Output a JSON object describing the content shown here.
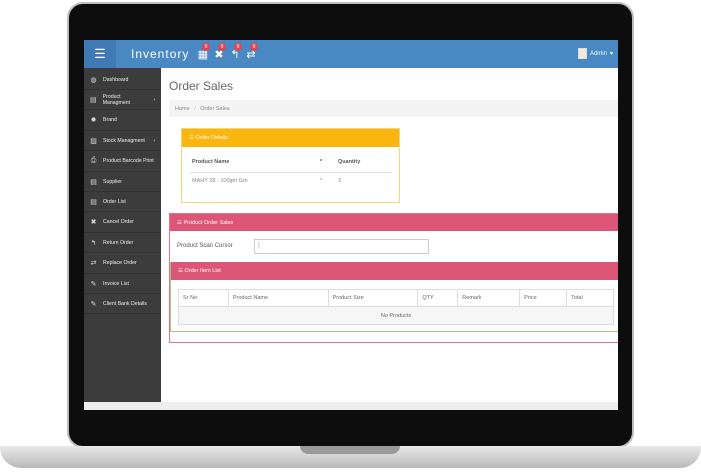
{
  "header": {
    "brand": "Inventory",
    "user": "Admin",
    "notifications": [
      {
        "icon": "calendar-icon",
        "glyph": "▦",
        "count": "0"
      },
      {
        "icon": "close-icon",
        "glyph": "✖",
        "count": "0"
      },
      {
        "icon": "reply-icon",
        "glyph": "↰",
        "count": "0"
      },
      {
        "icon": "retweet-icon",
        "glyph": "⇄",
        "count": "0"
      }
    ]
  },
  "sidebar": {
    "items": [
      {
        "label": "Dashboard",
        "icon": "dashboard-icon",
        "glyph": "◍"
      },
      {
        "label": "Product Managment",
        "icon": "product-icon",
        "glyph": "▤",
        "chev": "›"
      },
      {
        "label": "Brand",
        "icon": "gear-icon",
        "glyph": "✹"
      },
      {
        "label": "Stock Managment",
        "icon": "picture-icon",
        "glyph": "▨",
        "chev": "›"
      },
      {
        "label": "Product Barcode Print",
        "icon": "print-icon",
        "glyph": "⎙"
      },
      {
        "label": "Supplier",
        "icon": "table-icon",
        "glyph": "▤"
      },
      {
        "label": "Order List",
        "icon": "table-icon",
        "glyph": "▤"
      },
      {
        "label": "Cancel Order",
        "icon": "close-icon",
        "glyph": "✖"
      },
      {
        "label": "Return Order",
        "icon": "reply-icon",
        "glyph": "↰"
      },
      {
        "label": "Replace Order",
        "icon": "retweet-icon",
        "glyph": "⇄"
      },
      {
        "label": "Invoice List",
        "icon": "edit-icon",
        "glyph": "✎"
      },
      {
        "label": "Client Bank Details",
        "icon": "edit-icon",
        "glyph": "✎"
      }
    ]
  },
  "main": {
    "title": "Order Sales",
    "breadcrumb": {
      "home": "Home",
      "sep": "/",
      "current": "Order Sales"
    },
    "order_details": {
      "title": "Order Details",
      "columns": [
        "Product Name",
        "*",
        "Quantity"
      ],
      "rows": [
        [
          "MAHY 28 - 100gm Gm",
          "*",
          "3"
        ]
      ]
    },
    "product_order_sales": {
      "title": "Product Order Sales",
      "scan_label": "Product Scan Cursor",
      "scan_value": "|"
    },
    "order_item_list": {
      "title": "Order Item List",
      "columns": [
        "Sr No",
        "Product Name",
        "Product Size",
        "QTY",
        "Remark",
        "Price",
        "Total"
      ],
      "empty": "No Products"
    }
  },
  "colors": {
    "header": "#4a88c4",
    "sidebar": "#3c3c3c",
    "warning": "#fbb50f",
    "danger": "#dd5577"
  }
}
